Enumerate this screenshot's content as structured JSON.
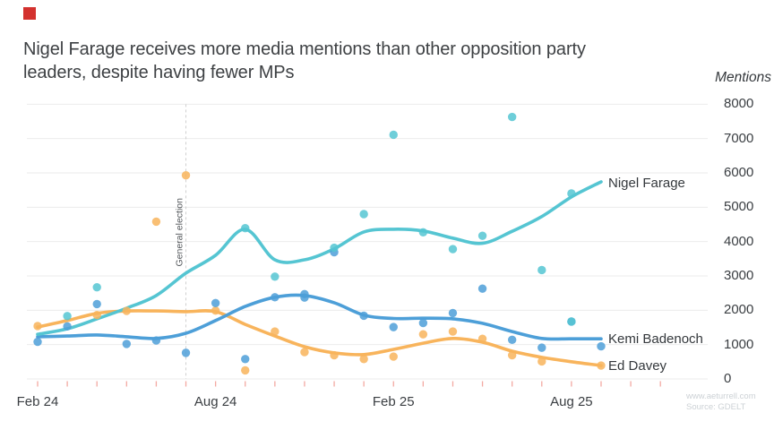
{
  "marker_color": "#d3312e",
  "header": {
    "title_line1": "Nigel Farage receives more media mentions than other opposition party",
    "title_line2": "leaders, despite having fewer MPs"
  },
  "footer": {
    "website": "www.aeturrell.com",
    "source": "Source: GDELT"
  },
  "chart_data": {
    "type": "line",
    "subtype": "smoothed monthly lines with monthly scatter points",
    "title": "Nigel Farage receives more media mentions than other opposition party leaders, despite having fewer MPs",
    "xlabel": "",
    "ylabel": "Mentions",
    "ylim": [
      0,
      8000
    ],
    "y_ticks": [
      0,
      1000,
      2000,
      3000,
      4000,
      5000,
      6000,
      7000,
      8000
    ],
    "x_tick_labels": [
      "Feb 24",
      "Aug 24",
      "Feb 25",
      "Aug 25"
    ],
    "x_tick_month_indices": [
      0,
      6,
      12,
      18
    ],
    "months": [
      "Feb 24",
      "Mar 24",
      "Apr 24",
      "May 24",
      "Jun 24",
      "Jul 24",
      "Aug 24",
      "Sep 24",
      "Oct 24",
      "Nov 24",
      "Dec 24",
      "Jan 25",
      "Feb 25",
      "Mar 25",
      "Apr 25",
      "May 25",
      "Jun 25",
      "Jul 25",
      "Aug 25",
      "Sep 25"
    ],
    "grid": true,
    "legend_position": "line-end-labels",
    "annotation": {
      "label": "General election",
      "month_index": 5
    },
    "colors": {
      "grid": "#ebebeb",
      "month_tick": "#f3a9a2",
      "annotation_line": "#cfcfcf",
      "farage": "#55c5d2",
      "badenoch": "#4d9fd8",
      "davey": "#f8b45c"
    },
    "series": [
      {
        "name": "Nigel Farage",
        "key": "nigel-farage",
        "color": "#55c5d2",
        "line": [
          1300,
          1460,
          1750,
          2060,
          2430,
          3080,
          3600,
          4360,
          3470,
          3470,
          3790,
          4280,
          4360,
          4310,
          4100,
          3950,
          4300,
          4730,
          5300,
          5740
        ],
        "dots": [
          [
            1,
            1830
          ],
          [
            2,
            2670
          ],
          [
            7,
            4390
          ],
          [
            8,
            2980
          ],
          [
            10,
            3820
          ],
          [
            11,
            4800
          ],
          [
            12,
            7110
          ],
          [
            13,
            4270
          ],
          [
            14,
            3780
          ],
          [
            15,
            4170
          ],
          [
            16,
            7630
          ],
          [
            17,
            3170
          ],
          [
            18,
            5400
          ],
          [
            18,
            1670
          ]
        ]
      },
      {
        "name": "Kemi Badenoch",
        "key": "kemi-badenoch",
        "color": "#4d9fd8",
        "line": [
          1230,
          1250,
          1280,
          1230,
          1180,
          1330,
          1700,
          2110,
          2380,
          2430,
          2220,
          1860,
          1760,
          1770,
          1750,
          1620,
          1380,
          1180,
          1170,
          1170
        ],
        "dots": [
          [
            0,
            1080
          ],
          [
            1,
            1530
          ],
          [
            2,
            2180
          ],
          [
            3,
            1020
          ],
          [
            4,
            1120
          ],
          [
            5,
            760
          ],
          [
            6,
            2210
          ],
          [
            7,
            580
          ],
          [
            8,
            2380
          ],
          [
            9,
            2470
          ],
          [
            9,
            2370
          ],
          [
            10,
            3690
          ],
          [
            11,
            1840
          ],
          [
            12,
            1510
          ],
          [
            13,
            1630
          ],
          [
            14,
            1920
          ],
          [
            15,
            2630
          ],
          [
            16,
            1140
          ],
          [
            17,
            910
          ],
          [
            18,
            1670
          ],
          [
            19,
            950
          ]
        ]
      },
      {
        "name": "Ed Davey",
        "key": "ed-davey",
        "color": "#f8b45c",
        "line": [
          1510,
          1700,
          1910,
          1980,
          1980,
          1960,
          1960,
          1590,
          1250,
          940,
          760,
          710,
          860,
          1040,
          1180,
          1070,
          810,
          630,
          500,
          390
        ],
        "dots": [
          [
            0,
            1540
          ],
          [
            2,
            1860
          ],
          [
            3,
            1980
          ],
          [
            4,
            4580
          ],
          [
            5,
            5930
          ],
          [
            6,
            1990
          ],
          [
            7,
            250
          ],
          [
            8,
            1380
          ],
          [
            9,
            780
          ],
          [
            10,
            690
          ],
          [
            11,
            580
          ],
          [
            12,
            650
          ],
          [
            13,
            1300
          ],
          [
            14,
            1380
          ],
          [
            15,
            1170
          ],
          [
            16,
            690
          ],
          [
            17,
            510
          ],
          [
            19,
            390
          ]
        ]
      }
    ]
  }
}
